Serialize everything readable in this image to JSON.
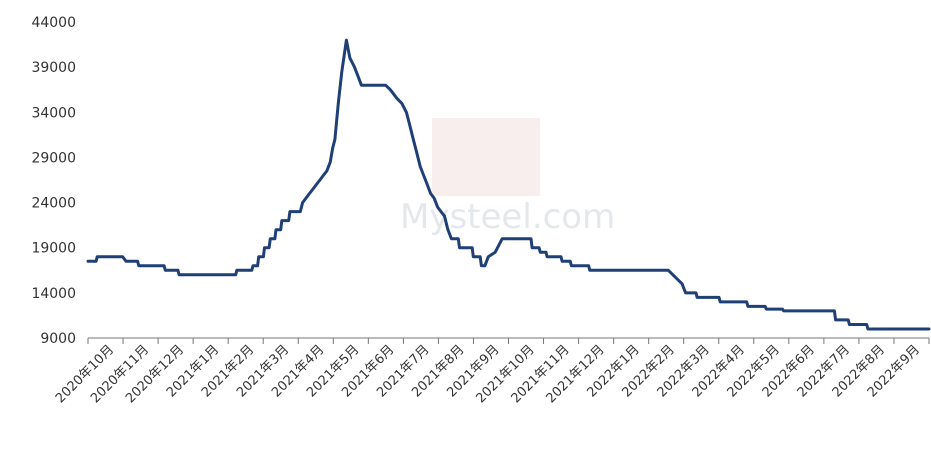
{
  "colors": {
    "line": "#1f3f77",
    "axis": "#777777",
    "text": "#333333",
    "watermark_red": "#d93a3a"
  },
  "watermark": {
    "brand_text": "Mysteel.com"
  },
  "chart_data": {
    "type": "line",
    "title": "",
    "xlabel": "",
    "ylabel": "",
    "ylim": [
      9000,
      44000
    ],
    "yticks": [
      9000,
      14000,
      19000,
      24000,
      29000,
      34000,
      39000,
      44000
    ],
    "ytick_labels": [
      "9000",
      "14000",
      "19000",
      "24000",
      "29000",
      "34000",
      "39000",
      "44000"
    ],
    "xlim": [
      "2020-10-01",
      "2022-09-30"
    ],
    "grid": false,
    "legend": "none",
    "x_categories": [
      "2020年10月",
      "2020年11月",
      "2020年12月",
      "2021年1月",
      "2021年2月",
      "2021年3月",
      "2021年4月",
      "2021年5月",
      "2021年6月",
      "2021年7月",
      "2021年8月",
      "2021年9月",
      "2021年10月",
      "2021年11月",
      "2021年12月",
      "2022年1月",
      "2022年2月",
      "2022年3月",
      "2022年4月",
      "2022年5月",
      "2022年6月",
      "2022年7月",
      "2022年8月",
      "2022年9月"
    ],
    "series": [
      {
        "points": [
          [
            "2020-10-01",
            17500
          ],
          [
            "2020-10-08",
            17500
          ],
          [
            "2020-10-09",
            18000
          ],
          [
            "2020-10-31",
            18000
          ],
          [
            "2020-11-03",
            17500
          ],
          [
            "2020-11-13",
            17500
          ],
          [
            "2020-11-14",
            17000
          ],
          [
            "2020-12-06",
            17000
          ],
          [
            "2020-12-07",
            16500
          ],
          [
            "2020-12-18",
            16500
          ],
          [
            "2020-12-19",
            16000
          ],
          [
            "2021-02-06",
            16000
          ],
          [
            "2021-02-07",
            16500
          ],
          [
            "2021-02-20",
            16500
          ],
          [
            "2021-02-21",
            17000
          ],
          [
            "2021-02-25",
            17000
          ],
          [
            "2021-02-26",
            18000
          ],
          [
            "2021-03-02",
            18000
          ],
          [
            "2021-03-03",
            19000
          ],
          [
            "2021-03-07",
            19000
          ],
          [
            "2021-03-08",
            20000
          ],
          [
            "2021-03-12",
            20000
          ],
          [
            "2021-03-13",
            21000
          ],
          [
            "2021-03-17",
            21000
          ],
          [
            "2021-03-18",
            22000
          ],
          [
            "2021-03-24",
            22000
          ],
          [
            "2021-03-25",
            23000
          ],
          [
            "2021-04-03",
            23000
          ],
          [
            "2021-04-05",
            24000
          ],
          [
            "2021-04-08",
            24500
          ],
          [
            "2021-04-11",
            25000
          ],
          [
            "2021-04-14",
            25500
          ],
          [
            "2021-04-17",
            26000
          ],
          [
            "2021-04-20",
            26500
          ],
          [
            "2021-04-23",
            27000
          ],
          [
            "2021-04-26",
            27500
          ],
          [
            "2021-04-29",
            28500
          ],
          [
            "2021-05-01",
            30000
          ],
          [
            "2021-05-03",
            31000
          ],
          [
            "2021-05-06",
            35000
          ],
          [
            "2021-05-09",
            38500
          ],
          [
            "2021-05-13",
            42000
          ],
          [
            "2021-05-16",
            40000
          ],
          [
            "2021-05-20",
            39000
          ],
          [
            "2021-05-23",
            38000
          ],
          [
            "2021-05-26",
            37000
          ],
          [
            "2021-06-16",
            37000
          ],
          [
            "2021-06-20",
            36500
          ],
          [
            "2021-06-23",
            36000
          ],
          [
            "2021-06-26",
            35500
          ],
          [
            "2021-06-30",
            35000
          ],
          [
            "2021-07-04",
            34000
          ],
          [
            "2021-07-07",
            32500
          ],
          [
            "2021-07-10",
            31000
          ],
          [
            "2021-07-13",
            29500
          ],
          [
            "2021-07-16",
            28000
          ],
          [
            "2021-07-19",
            27000
          ],
          [
            "2021-07-22",
            26000
          ],
          [
            "2021-07-25",
            25000
          ],
          [
            "2021-07-28",
            24500
          ],
          [
            "2021-07-31",
            23500
          ],
          [
            "2021-08-03",
            23000
          ],
          [
            "2021-08-06",
            22500
          ],
          [
            "2021-08-09",
            21000
          ],
          [
            "2021-08-12",
            20000
          ],
          [
            "2021-08-18",
            20000
          ],
          [
            "2021-08-19",
            19000
          ],
          [
            "2021-08-30",
            19000
          ],
          [
            "2021-08-31",
            18000
          ],
          [
            "2021-09-06",
            18000
          ],
          [
            "2021-09-07",
            17000
          ],
          [
            "2021-09-10",
            17000
          ],
          [
            "2021-09-13",
            18000
          ],
          [
            "2021-09-19",
            18500
          ],
          [
            "2021-09-25",
            20000
          ],
          [
            "2021-10-20",
            20000
          ],
          [
            "2021-10-21",
            19000
          ],
          [
            "2021-10-27",
            19000
          ],
          [
            "2021-10-28",
            18500
          ],
          [
            "2021-11-02",
            18500
          ],
          [
            "2021-11-03",
            18000
          ],
          [
            "2021-11-15",
            18000
          ],
          [
            "2021-11-16",
            17500
          ],
          [
            "2021-11-23",
            17500
          ],
          [
            "2021-11-24",
            17000
          ],
          [
            "2021-12-09",
            17000
          ],
          [
            "2021-12-10",
            16500
          ],
          [
            "2022-02-16",
            16500
          ],
          [
            "2022-02-20",
            16000
          ],
          [
            "2022-02-24",
            15500
          ],
          [
            "2022-02-28",
            15000
          ],
          [
            "2022-03-03",
            14000
          ],
          [
            "2022-03-12",
            14000
          ],
          [
            "2022-03-13",
            13500
          ],
          [
            "2022-04-01",
            13500
          ],
          [
            "2022-04-02",
            13000
          ],
          [
            "2022-04-25",
            13000
          ],
          [
            "2022-04-26",
            12500
          ],
          [
            "2022-05-11",
            12500
          ],
          [
            "2022-05-12",
            12200
          ],
          [
            "2022-05-26",
            12200
          ],
          [
            "2022-05-27",
            12000
          ],
          [
            "2022-07-10",
            12000
          ],
          [
            "2022-07-11",
            11000
          ],
          [
            "2022-07-22",
            11000
          ],
          [
            "2022-07-23",
            10500
          ],
          [
            "2022-08-07",
            10500
          ],
          [
            "2022-08-08",
            10000
          ],
          [
            "2022-09-30",
            10000
          ]
        ]
      }
    ]
  }
}
